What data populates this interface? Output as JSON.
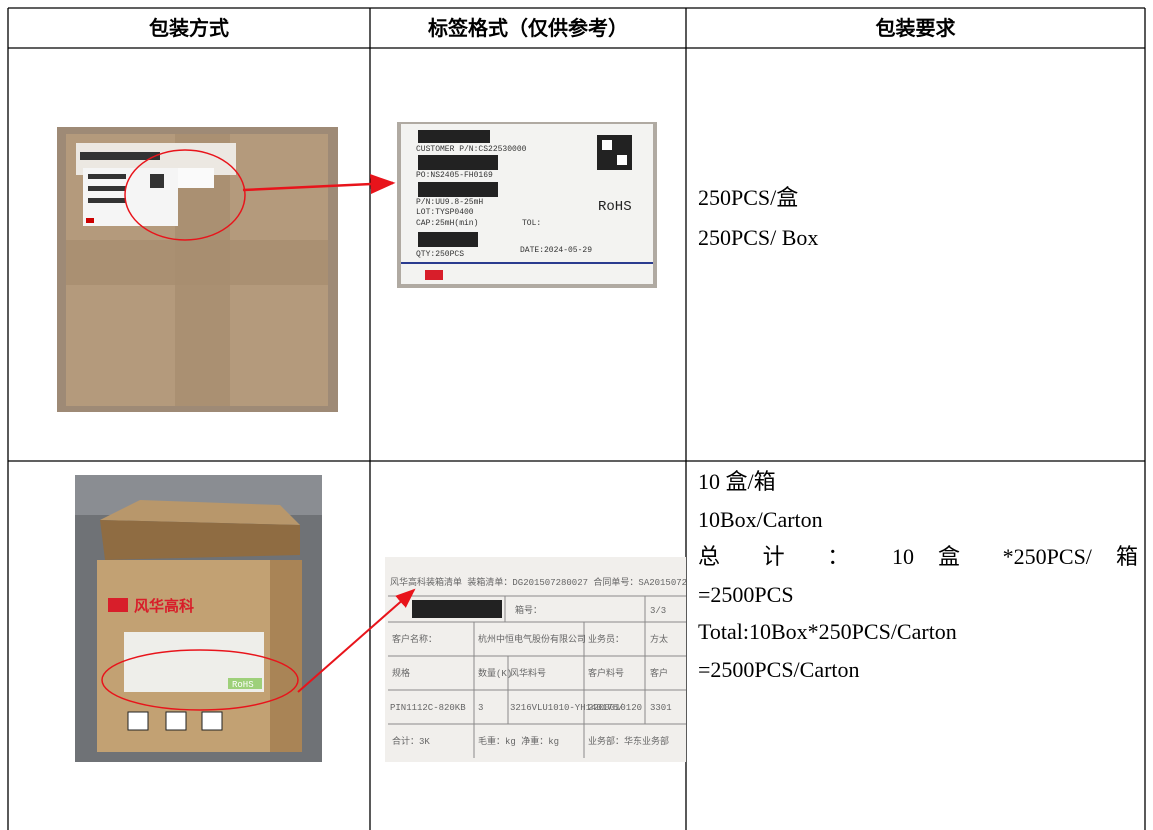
{
  "table": {
    "headers": [
      "包装方式",
      "标签格式（仅供参考）",
      "包装要求"
    ],
    "rows": [
      {
        "label_image": {
          "lines": [
            "CUSTOMER P/N:CS22530000",
            "PO:NS2405-FH0169",
            "P/N:UU9.8-25mH",
            "LOT:TYSP0400",
            "CAP:25mH(min)",
            "QTY:250PCS"
          ],
          "tol": "TOL:",
          "date": "DATE:2024-05-29",
          "rohs": "RoHS"
        },
        "requirements": [
          "250PCS/盒",
          "250PCS/ Box"
        ]
      },
      {
        "box_image": {
          "brand": "风华高科",
          "rohs": "RoHS"
        },
        "label_image": {
          "cells": [
            [
              "风华高科装箱清单  装箱清单：DG201507280027  合同单号：SA201507218"
            ],
            [
              "箱号：",
              "3/3"
            ],
            [
              "客户名称：",
              "杭州中恒电气股份有限公司",
              "业务员：",
              "方太"
            ],
            [
              "规格",
              "数量(K)",
              "风华料号",
              "客户料号",
              "客户"
            ],
            [
              "PIN1112C-820KB",
              "3",
              "3216VLU1010-YH140176/",
              "2200010120",
              "3301"
            ],
            [
              "合计：3K",
              "毛重：kg  净重：kg",
              "业务部：华东业务部"
            ]
          ]
        },
        "requirements": [
          "10 盒/箱",
          "10Box/Carton",
          "总 计 ： 10 盒 *250PCS/ 箱",
          "=2500PCS",
          "Total:10Box*250PCS/Carton",
          "=2500PCS/Carton"
        ]
      }
    ]
  }
}
